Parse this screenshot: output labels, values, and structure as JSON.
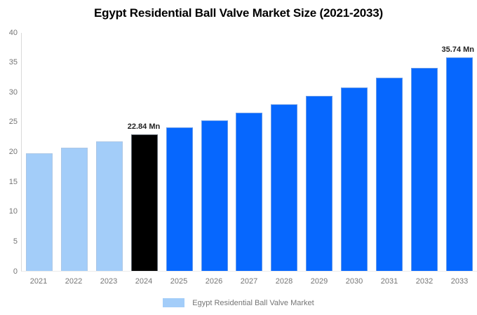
{
  "title": "Egypt Residential Ball Valve Market Size (2021-2033)",
  "legend": {
    "label": "Egypt Residential Ball Valve Market",
    "swatch_color": "#A3CDF9"
  },
  "chart_data": {
    "type": "bar",
    "title": "Egypt Residential Ball Valve Market Size (2021-2033)",
    "categories": [
      "2021",
      "2022",
      "2023",
      "2024",
      "2025",
      "2026",
      "2027",
      "2028",
      "2029",
      "2030",
      "2031",
      "2032",
      "2033"
    ],
    "values": [
      19.67,
      20.67,
      21.73,
      22.84,
      24.01,
      25.23,
      26.52,
      27.87,
      29.3,
      30.79,
      32.36,
      34.01,
      35.74
    ],
    "bar_colors": [
      "#A3CDF9",
      "#A3CDF9",
      "#A3CDF9",
      "#000000",
      "#0667FE",
      "#0667FE",
      "#0667FE",
      "#0667FE",
      "#0667FE",
      "#0667FE",
      "#0667FE",
      "#0667FE",
      "#0667FE"
    ],
    "value_labels": [
      {
        "index": 3,
        "text": "22.84 Mn"
      },
      {
        "index": 12,
        "text": "35.74 Mn"
      }
    ],
    "xlabel": "",
    "ylabel": "",
    "ylim": [
      0,
      40
    ],
    "yticks": [
      0,
      5,
      10,
      15,
      20,
      25,
      30,
      35,
      40
    ],
    "grid": false,
    "legend_position": "bottom",
    "axis_color": "#D9D9D9",
    "tick_label_color": "#757575"
  }
}
